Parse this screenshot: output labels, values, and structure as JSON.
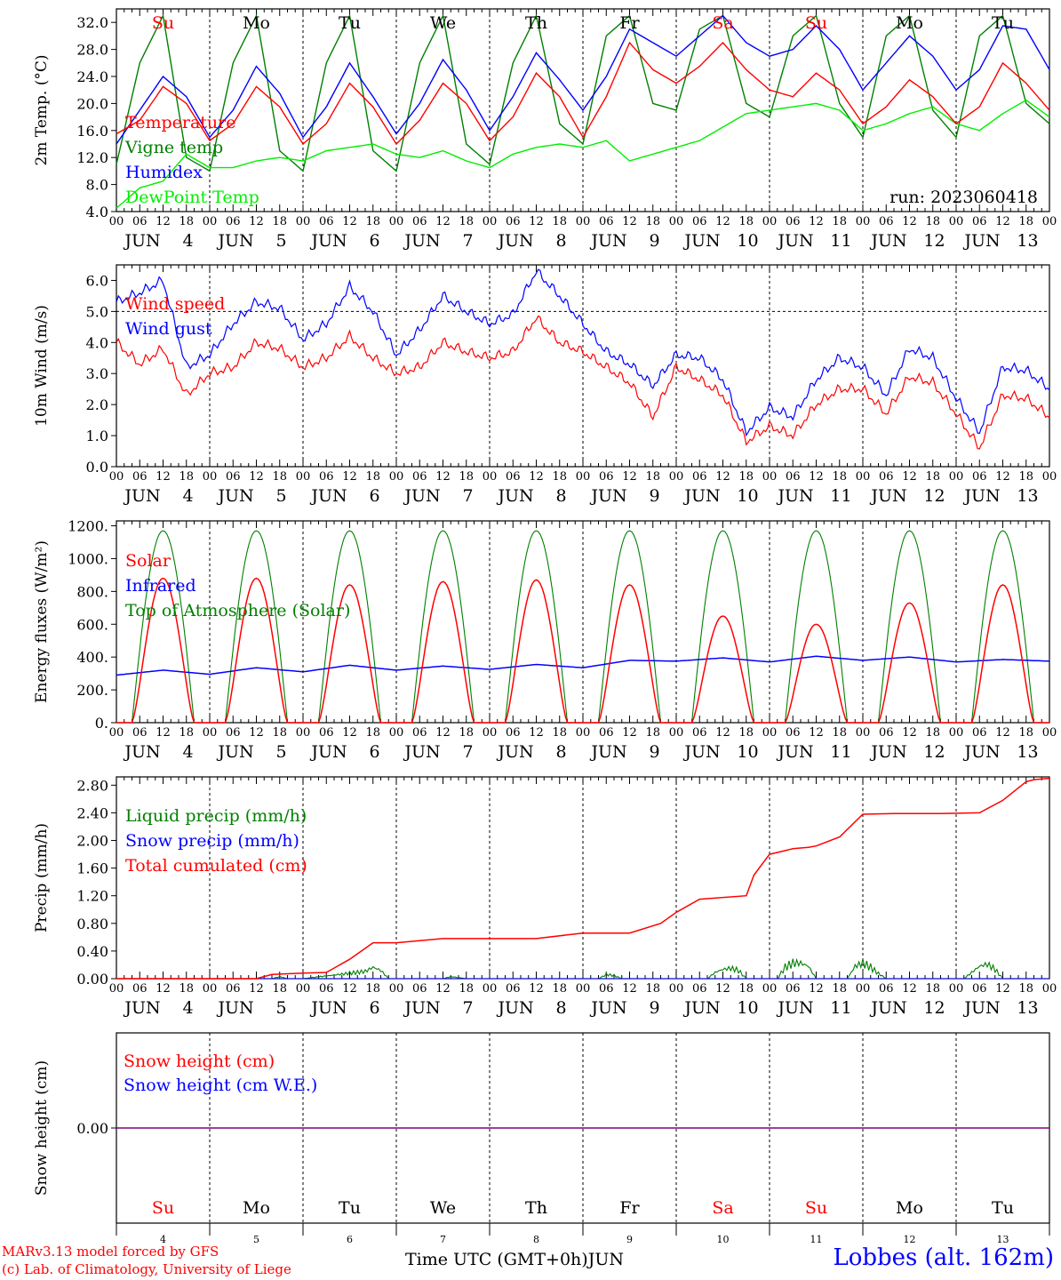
{
  "colors": {
    "temperature": "#ff0000",
    "vigne": "#008000",
    "humidex": "#0000ff",
    "dewpoint": "#00ee00",
    "snow_line": "#800080",
    "weekend": "#ff0000",
    "weekday": "#000000",
    "axis": "#000000"
  },
  "days": [
    "4",
    "5",
    "6",
    "7",
    "8",
    "9",
    "10",
    "11",
    "12",
    "13"
  ],
  "weekday_labels": [
    "Su",
    "Mo",
    "Tu",
    "We",
    "Th",
    "Fr",
    "Sa",
    "Su",
    "Mo",
    "Tu"
  ],
  "weekend_flags": [
    true,
    false,
    false,
    false,
    false,
    false,
    true,
    true,
    false,
    false
  ],
  "hour_ticks": [
    "00",
    "06",
    "12",
    "18"
  ],
  "month": "JUN",
  "footer": {
    "credit_line1": "MARv3.13 model forced by GFS",
    "credit_line2": "(c) Lab. of Climatology, University of Liege",
    "x_axis_title": "Time UTC (GMT+0h)",
    "x_axis_month": "JUN",
    "station": "Lobbes (alt. 162m)"
  },
  "chart_data": [
    {
      "type": "line",
      "ylabel": "2m Temp. (°C)",
      "ylim": [
        4,
        34
      ],
      "yticks": [
        "4.0",
        "8.0",
        "12.0",
        "16.0",
        "20.0",
        "24.0",
        "28.0",
        "32.0"
      ],
      "ytick_values": [
        4,
        8,
        12,
        16,
        20,
        24,
        28,
        32
      ],
      "annotation": "run: 2023060418",
      "legend": [
        "Temperature",
        "Vigne temp",
        "Humidex",
        "DewPoint Temp"
      ],
      "x_hours": [
        0,
        6,
        12,
        18,
        24,
        30,
        36,
        42,
        48,
        54,
        60,
        66,
        72,
        78,
        84,
        90,
        96,
        102,
        108,
        114,
        120,
        126,
        132,
        138,
        144,
        150,
        156,
        162,
        168,
        174,
        180,
        186,
        192,
        198,
        204,
        210,
        216,
        222,
        228,
        234,
        240
      ],
      "series": [
        {
          "name": "Temperature",
          "color_key": "temperature",
          "values": [
            15.5,
            17.5,
            22.5,
            20,
            14.5,
            17,
            22.5,
            19.5,
            14,
            17,
            23,
            19.5,
            14,
            17.5,
            23,
            20,
            14.5,
            18,
            24.5,
            21,
            15,
            21,
            29,
            25,
            23,
            25.5,
            29,
            25,
            22,
            21,
            24.5,
            22,
            17,
            19.5,
            23.5,
            21,
            17,
            19.5,
            26,
            23,
            19
          ]
        },
        {
          "name": "Vigne temp",
          "color_key": "vigne",
          "values": [
            11,
            26,
            33,
            12,
            10,
            26,
            33,
            13,
            10,
            26,
            33,
            13,
            10,
            26,
            33,
            14,
            11,
            26,
            33,
            17,
            14,
            30,
            33,
            20,
            19,
            31,
            33,
            20,
            18,
            30,
            33,
            20,
            15,
            30,
            33,
            19,
            15,
            30,
            33,
            20,
            17
          ]
        },
        {
          "name": "Humidex",
          "color_key": "humidex",
          "values": [
            14,
            19,
            24,
            21,
            15,
            19,
            25.5,
            21.5,
            15,
            19.5,
            26,
            21,
            15.5,
            20,
            26.5,
            22,
            16,
            21,
            27.5,
            23.5,
            19,
            24,
            31,
            29,
            27,
            30,
            33,
            29,
            27,
            28,
            31.5,
            28,
            22,
            26,
            30,
            27,
            22,
            25,
            31.5,
            31,
            25
          ]
        },
        {
          "name": "DewPoint Temp",
          "color_key": "dewpoint",
          "values": [
            4.5,
            7.5,
            8.5,
            12.5,
            10.5,
            10.5,
            11.5,
            12,
            11.5,
            13,
            13.5,
            14,
            12.5,
            12,
            13,
            11.5,
            10.5,
            12.5,
            13.5,
            14,
            13.5,
            14.5,
            11.5,
            12.5,
            13.5,
            14.5,
            16.5,
            18.5,
            19,
            19.5,
            20,
            19,
            16,
            17,
            18.5,
            19.5,
            17,
            16,
            18.5,
            20.5,
            18
          ]
        }
      ]
    },
    {
      "type": "line",
      "ylabel": "10m Wind (m/s)",
      "ylim": [
        0,
        6.5
      ],
      "yticks": [
        "0.0",
        "1.0",
        "2.0",
        "3.0",
        "4.0",
        "5.0",
        "6.0"
      ],
      "ytick_values": [
        0,
        1,
        2,
        3,
        4,
        5,
        6
      ],
      "reference_line": 5.0,
      "legend": [
        "Wind speed",
        "Wind gust"
      ],
      "x_hours": [
        0,
        6,
        12,
        18,
        24,
        30,
        36,
        42,
        48,
        54,
        60,
        66,
        72,
        78,
        84,
        90,
        96,
        102,
        108,
        114,
        120,
        126,
        132,
        138,
        144,
        150,
        156,
        162,
        168,
        174,
        180,
        186,
        192,
        198,
        204,
        210,
        216,
        222,
        228,
        234,
        240
      ],
      "series": [
        {
          "name": "Wind speed",
          "color_key": "temperature",
          "values": [
            4,
            3.3,
            3.8,
            2.3,
            3,
            3.2,
            4,
            3.8,
            3.2,
            3.5,
            4.2,
            3.5,
            3,
            3.2,
            4,
            3.7,
            3.5,
            3.7,
            4.8,
            4,
            3.7,
            3.2,
            2.7,
            1.6,
            3.2,
            2.8,
            2.3,
            0.8,
            1.3,
            1,
            2,
            2.5,
            2.5,
            1.7,
            2.9,
            2.7,
            1.7,
            0.6,
            2.3,
            2.2,
            1.6
          ]
        },
        {
          "name": "Wind gust",
          "color_key": "humidex",
          "values": [
            5.3,
            5.6,
            6,
            3.2,
            3.6,
            4.6,
            5.3,
            5.1,
            4.1,
            4.6,
            5.8,
            5,
            3.6,
            4.4,
            5.5,
            5,
            4.6,
            4.9,
            6.3,
            5.5,
            4.6,
            3.7,
            3.3,
            2.6,
            3.6,
            3.5,
            2.8,
            1.1,
            1.9,
            1.6,
            2.8,
            3.5,
            3.2,
            2.3,
            3.8,
            3.5,
            2.2,
            1.1,
            3.2,
            3.1,
            2.5
          ]
        }
      ]
    },
    {
      "type": "line",
      "ylabel": "Energy fluxes (W/m²)",
      "ylim": [
        0,
        1230
      ],
      "yticks": [
        "0.",
        "200.",
        "400.",
        "600.",
        "800.",
        "1000.",
        "1200."
      ],
      "ytick_values": [
        0,
        200,
        400,
        600,
        800,
        1000,
        1200
      ],
      "legend": [
        "Solar",
        "Infrared",
        "Top of Atmosphere (Solar)"
      ],
      "daylight_hours": [
        4,
        20
      ],
      "solar_peaks": [
        880,
        880,
        840,
        860,
        870,
        840,
        650,
        600,
        730,
        840
      ],
      "toa_peak": 1170,
      "infrared_x_hours": [
        0,
        12,
        24,
        36,
        48,
        60,
        72,
        84,
        96,
        108,
        120,
        132,
        144,
        156,
        168,
        180,
        192,
        204,
        216,
        228,
        240
      ],
      "infrared_values": [
        290,
        320,
        295,
        335,
        310,
        350,
        320,
        345,
        325,
        355,
        335,
        380,
        375,
        395,
        370,
        405,
        380,
        400,
        370,
        385,
        375
      ]
    },
    {
      "type": "line",
      "ylabel": "Precip (mm/h)",
      "ylim": [
        0,
        2.92
      ],
      "yticks": [
        "0.00",
        "0.40",
        "0.80",
        "1.20",
        "1.60",
        "2.00",
        "2.40",
        "2.80"
      ],
      "ytick_values": [
        0,
        0.4,
        0.8,
        1.2,
        1.6,
        2.0,
        2.4,
        2.8
      ],
      "legend": [
        "Liquid precip (mm/h)",
        "Snow precip (mm/h)",
        "Total cumulated (cm)"
      ],
      "cumulated_x_hours": [
        0,
        36,
        40,
        48,
        54,
        60,
        66,
        72,
        84,
        96,
        108,
        120,
        132,
        140,
        144,
        150,
        162,
        164,
        168,
        174,
        178,
        180,
        186,
        192,
        200,
        204,
        212,
        222,
        228,
        234,
        236,
        240
      ],
      "cumulated_values": [
        0,
        0,
        0.06,
        0.08,
        0.09,
        0.28,
        0.52,
        0.52,
        0.58,
        0.58,
        0.58,
        0.66,
        0.66,
        0.8,
        0.96,
        1.15,
        1.2,
        1.5,
        1.8,
        1.88,
        1.9,
        1.92,
        2.05,
        2.38,
        2.39,
        2.39,
        2.39,
        2.4,
        2.58,
        2.85,
        2.88,
        2.9
      ],
      "liquid_x_hours": [
        0,
        40,
        42,
        44,
        48,
        64,
        66,
        68,
        70,
        72,
        84,
        86,
        88,
        90,
        124,
        126,
        128,
        130,
        152,
        154,
        156,
        158,
        160,
        162,
        170,
        172,
        174,
        176,
        178,
        180,
        188,
        190,
        192,
        194,
        196,
        198,
        218,
        220,
        222,
        224,
        226,
        228,
        240
      ],
      "liquid_values": [
        0,
        0,
        0.04,
        0,
        0,
        0.14,
        0.22,
        0.16,
        0,
        0,
        0,
        0.04,
        0.02,
        0,
        0,
        0.08,
        0.06,
        0,
        0,
        0.12,
        0.18,
        0.2,
        0.16,
        0,
        0,
        0.22,
        0.3,
        0.3,
        0.24,
        0,
        0,
        0.24,
        0.3,
        0.22,
        0.1,
        0,
        0,
        0.12,
        0.24,
        0.28,
        0.18,
        0,
        0
      ]
    },
    {
      "type": "line",
      "ylabel": "Snow height (cm)",
      "ylim": [
        -1,
        1
      ],
      "yticks": [
        "0.00"
      ],
      "ytick_values": [
        0
      ],
      "legend": [
        "Snow height (cm)",
        "Snow height (cm W.E.)"
      ],
      "series": [
        {
          "name": "Snow height (cm)",
          "values": [
            0,
            0
          ]
        },
        {
          "name": "Snow height (cm W.E.)",
          "values": [
            0,
            0
          ]
        }
      ]
    }
  ]
}
